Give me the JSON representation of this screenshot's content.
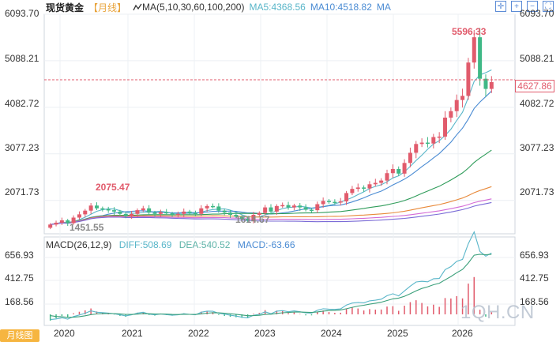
{
  "header": {
    "title": "现货黄金",
    "period": "【月线】",
    "ma_label": "MA(5,10,30,60,100,200)",
    "ma5": "MA5:4368.56",
    "ma10": "MA10:4518.82",
    "ma_more": "MA"
  },
  "toolbar": {
    "icons": [
      "crosshair-icon",
      "zoom-in-icon",
      "zoom-out-icon",
      "fullscreen-icon"
    ]
  },
  "price_axis": {
    "ticks": [
      "6093.70",
      "5088.21",
      "4082.72",
      "3077.23",
      "2071.73"
    ]
  },
  "current_price": "4627.86",
  "annotations": {
    "high": "5596.33",
    "mid": "2075.47",
    "low1": "1614.67",
    "low2": "1451.55"
  },
  "macd": {
    "title": "MACD(26,12,9)",
    "diff": "DIFF:508.69",
    "dea": "DEA:540.52",
    "macd": "MACD:-63.66",
    "ticks": [
      "656.93",
      "412.75",
      "168.56"
    ]
  },
  "x_axis": [
    "2020",
    "2021",
    "2022",
    "2023",
    "2024",
    "2025",
    "2026"
  ],
  "watermark": "1QH.CN",
  "tag_label": "月线图",
  "colors": {
    "up": "#e15b6c",
    "down": "#3fb886",
    "ma5": "#59b6c9",
    "ma10": "#4a8bd3"
  },
  "chart_data": {
    "type": "candlestick",
    "ylim": [
      1350,
      6093.7
    ],
    "high": 5596.33,
    "low": 1451.55,
    "last": 4627.86,
    "closes": [
      1550,
      1590,
      1640,
      1580,
      1700,
      1770,
      1850,
      1960,
      1900,
      1880,
      1860,
      1830,
      1780,
      1730,
      1780,
      1860,
      1900,
      1810,
      1780,
      1820,
      1790,
      1760,
      1780,
      1830,
      1800,
      1780,
      1900,
      1950,
      1940,
      1850,
      1810,
      1760,
      1720,
      1670,
      1640,
      1760,
      1800,
      1920,
      1830,
      1950,
      1970,
      1920,
      1960,
      1920,
      1870,
      1860,
      1990,
      2060,
      2040,
      2030,
      2050,
      2230,
      2320,
      2350,
      2330,
      2420,
      2450,
      2500,
      2660,
      2750,
      2650,
      2880,
      3100,
      3290,
      3320,
      3300,
      3440,
      3450,
      3860,
      4000,
      4240,
      4330,
      5050,
      5596,
      4700,
      4480,
      4627
    ]
  }
}
